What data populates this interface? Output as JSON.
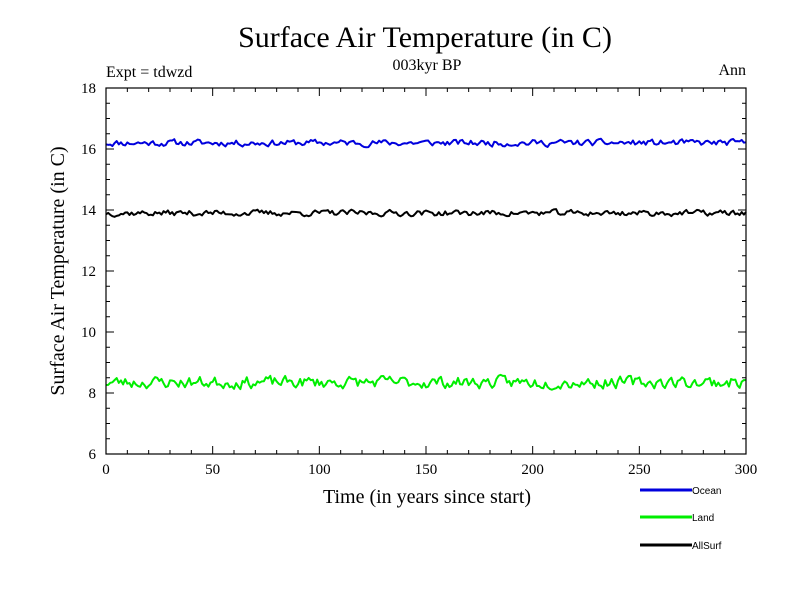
{
  "chart_data": {
    "type": "line",
    "title": "Surface Air Temperature (in C)",
    "subtitle_left": "Expt = tdwzd",
    "subtitle_center": "003kyr BP",
    "subtitle_right": "Ann",
    "xlabel": "Time (in years since start)",
    "ylabel": "Surface Air Temperature (in C)",
    "xlim": [
      0,
      300
    ],
    "ylim": [
      6,
      18
    ],
    "x_ticks": [
      0,
      50,
      100,
      150,
      200,
      250,
      300
    ],
    "y_ticks": [
      6,
      8,
      10,
      12,
      14,
      16,
      18
    ],
    "x_tick_labels": [
      "0",
      "50",
      "100",
      "150",
      "200",
      "250",
      "300"
    ],
    "y_tick_labels": [
      "6",
      "8",
      "10",
      "12",
      "14",
      "16",
      "18"
    ],
    "series": [
      {
        "name": "Ocean",
        "color": "#0000dd",
        "mean": 16.2,
        "amplitude": 0.12,
        "seed": 11
      },
      {
        "name": "Land",
        "color": "#00ee00",
        "mean": 8.35,
        "amplitude": 0.22,
        "seed": 23
      },
      {
        "name": "AllSurf",
        "color": "#000000",
        "mean": 13.9,
        "amplitude": 0.11,
        "seed": 37
      }
    ]
  }
}
